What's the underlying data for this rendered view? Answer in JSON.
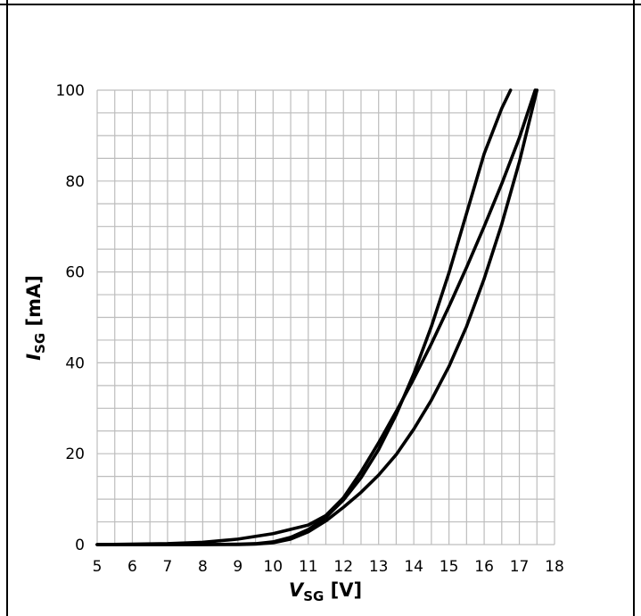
{
  "chart_data": {
    "type": "line",
    "xlabel": {
      "main": "V",
      "sub": "SG",
      "unit": " [V]"
    },
    "ylabel": {
      "main": "I",
      "sub": "SG",
      "unit": " [mA]"
    },
    "xlim": [
      5,
      18
    ],
    "ylim": [
      0,
      100
    ],
    "x_ticks": [
      5,
      6,
      7,
      8,
      9,
      10,
      11,
      12,
      13,
      14,
      15,
      16,
      17,
      18
    ],
    "y_ticks": [
      0,
      20,
      40,
      60,
      80,
      100
    ],
    "grid": {
      "x_minor_step": 0.5,
      "y_minor_step": 5
    },
    "series": [
      {
        "x": [
          5,
          7,
          8,
          9,
          10,
          11,
          11.5,
          12,
          12.5,
          13,
          13.5,
          14,
          14.5,
          15,
          15.5,
          16,
          16.5,
          17,
          17.45
        ],
        "y": [
          0,
          0.2,
          0.5,
          1.2,
          2.4,
          4.3,
          6.4,
          10.3,
          16.0,
          22.4,
          29.3,
          36.5,
          44.2,
          52.4,
          61.0,
          70.0,
          79.4,
          89.5,
          100
        ]
      },
      {
        "x": [
          5,
          8,
          9,
          9.5,
          10,
          10.5,
          11,
          11.5,
          12,
          12.5,
          13,
          13.5,
          14,
          14.5,
          15,
          15.5,
          16,
          16.5,
          16.75
        ],
        "y": [
          0,
          0,
          0.1,
          0.2,
          0.6,
          1.6,
          3.3,
          6.0,
          9.8,
          14.7,
          20.9,
          28.6,
          37.6,
          48.0,
          59.8,
          72.9,
          86.0,
          96.0,
          100
        ]
      },
      {
        "x": [
          5,
          9,
          9.5,
          10,
          10.5,
          11,
          11.5,
          12,
          12.5,
          13,
          13.5,
          14,
          14.5,
          15,
          15.5,
          16,
          16.5,
          17,
          17.5
        ],
        "y": [
          0,
          0,
          0.1,
          0.4,
          1.2,
          2.8,
          5.2,
          8.2,
          11.5,
          15.3,
          19.8,
          25.4,
          31.8,
          39.2,
          48.0,
          58.5,
          70.5,
          84.2,
          100
        ]
      }
    ]
  }
}
